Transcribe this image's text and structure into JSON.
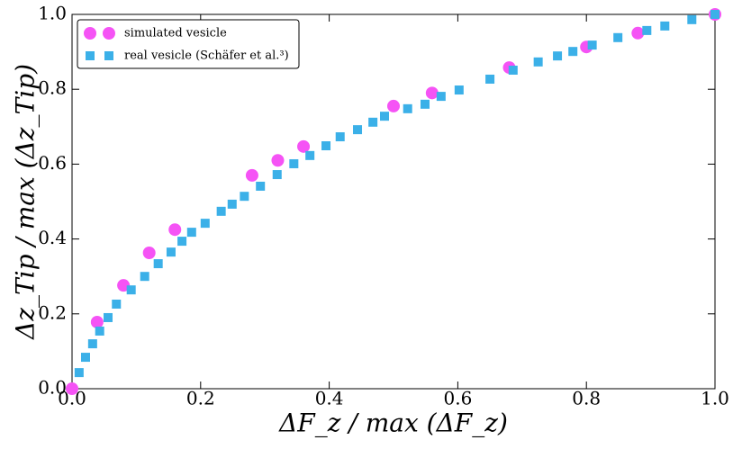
{
  "chart_data": {
    "type": "scatter",
    "xlabel": "ΔF_z / max (ΔF_z)",
    "ylabel": "Δz_Tip / max (Δz_Tip)",
    "xlim": [
      0,
      1
    ],
    "ylim": [
      0,
      1
    ],
    "xticks": [
      {
        "value": 0,
        "label": "0.0"
      },
      0.2,
      0.4,
      0.6,
      0.8,
      {
        "value": 1,
        "label": "1.0"
      }
    ],
    "yticks": [
      {
        "value": 0,
        "label": "0.0"
      },
      0.2,
      0.4,
      0.6,
      0.8,
      {
        "value": 1,
        "label": "1.0"
      }
    ],
    "legend": "upper left",
    "series": [
      {
        "name": "simulated vesicle",
        "color": "#f553f5",
        "marker": "circle",
        "x": [
          0,
          0.039,
          0.08,
          0.12,
          0.16,
          0.28,
          0.32,
          0.36,
          0.5,
          0.56,
          0.68,
          0.8,
          0.88,
          1.0
        ],
        "values": [
          0,
          0.178,
          0.276,
          0.363,
          0.425,
          0.57,
          0.61,
          0.647,
          0.755,
          0.79,
          0.858,
          0.913,
          0.95,
          1.0
        ]
      },
      {
        "name": "real vesicle (Schäfer et al.³)",
        "color": "#3bb0e8",
        "marker": "square",
        "x": [
          0.011,
          0.021,
          0.032,
          0.043,
          0.056,
          0.069,
          0.092,
          0.113,
          0.134,
          0.154,
          0.171,
          0.186,
          0.207,
          0.232,
          0.249,
          0.268,
          0.293,
          0.319,
          0.345,
          0.37,
          0.395,
          0.417,
          0.444,
          0.468,
          0.486,
          0.522,
          0.549,
          0.574,
          0.602,
          0.65,
          0.686,
          0.725,
          0.755,
          0.779,
          0.809,
          0.849,
          0.894,
          0.922,
          0.964,
          1.0
        ],
        "values": [
          0.043,
          0.084,
          0.12,
          0.154,
          0.19,
          0.226,
          0.264,
          0.3,
          0.334,
          0.365,
          0.394,
          0.418,
          0.442,
          0.474,
          0.493,
          0.514,
          0.541,
          0.572,
          0.601,
          0.623,
          0.649,
          0.673,
          0.692,
          0.712,
          0.728,
          0.748,
          0.76,
          0.781,
          0.798,
          0.827,
          0.851,
          0.873,
          0.889,
          0.901,
          0.918,
          0.938,
          0.957,
          0.969,
          0.986,
          1.0
        ]
      }
    ]
  }
}
